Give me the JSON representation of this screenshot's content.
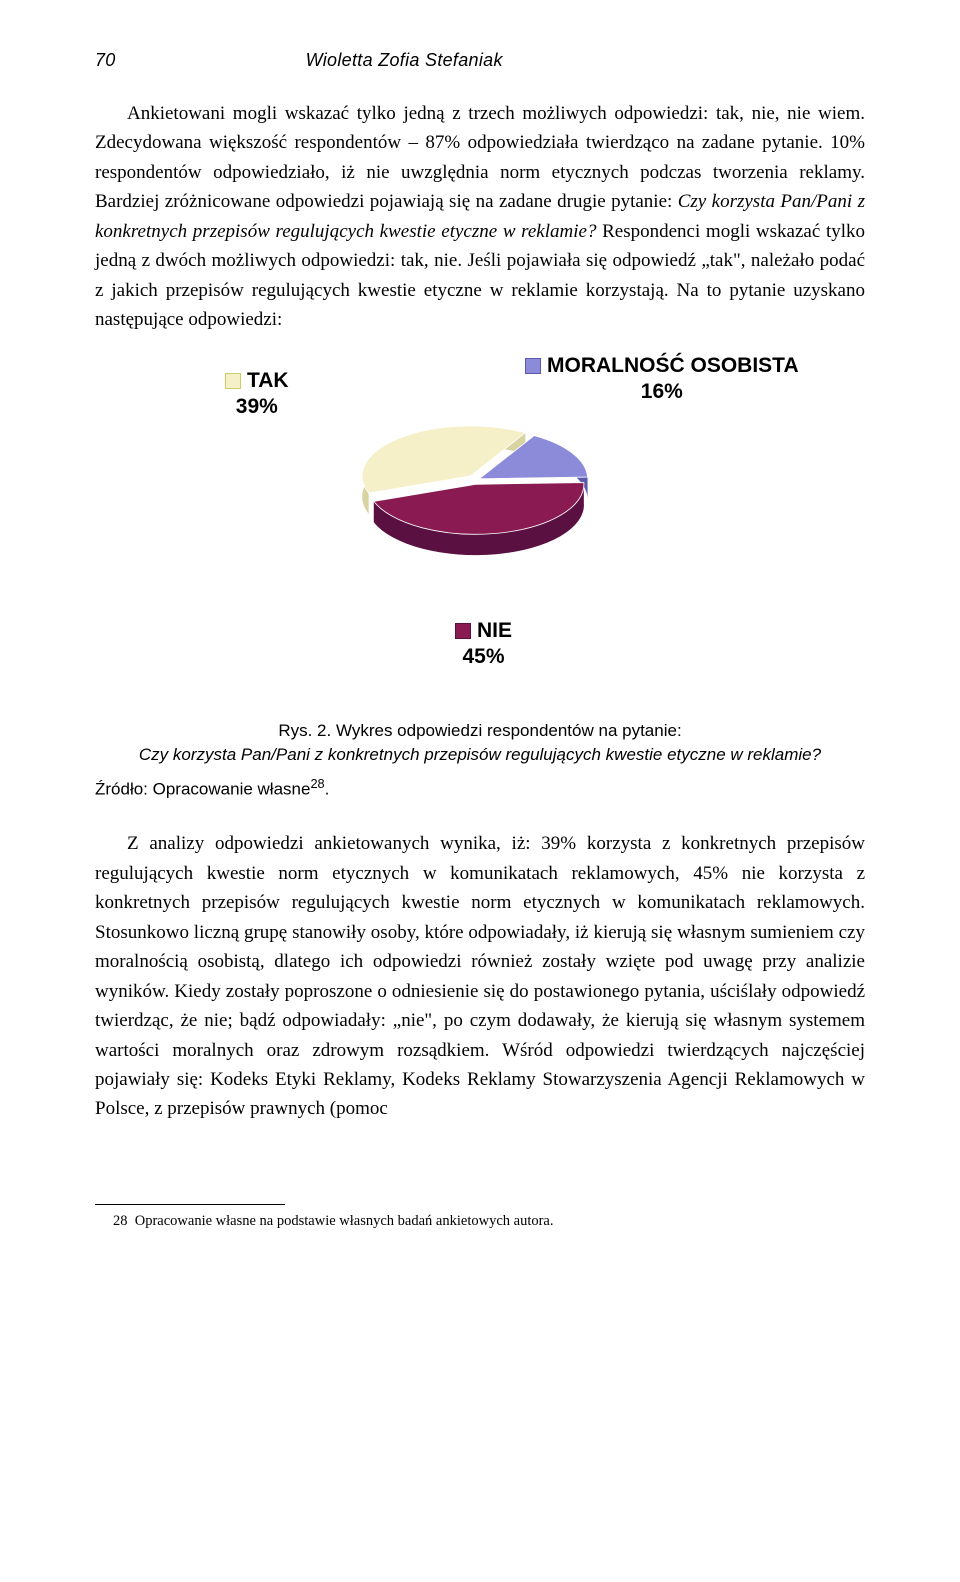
{
  "header": {
    "page_number": "70",
    "author": "Wioletta Zofia Stefaniak"
  },
  "paragraph1_html": "Ankietowani mogli wskazać tylko jedną z trzech możliwych odpowiedzi: tak, nie, nie wiem. Zdecydowana większość respondentów – 87% odpowiedziała twierdząco na zadane pytanie. 10% respondentów odpowiedziało, iż nie uwzględnia norm etycznych podczas tworzenia reklamy. Bardziej zróżnicowane odpowiedzi pojawiają się na zadane drugie pytanie: <em>Czy korzysta Pan/Pani z konkretnych przepisów regulujących kwestie etyczne w reklamie?</em> Respondenci mogli wskazać tylko jedną z dwóch możliwych odpowiedzi: tak, nie. Jeśli pojawiała się odpowiedź „tak\", należało podać z jakich przepisów regulujących kwestie etyczne w reklamie korzystają. Na to pytanie uzyskano następujące odpowiedzi:",
  "chart": {
    "type": "pie-3d",
    "legend": {
      "tak": {
        "label": "TAK",
        "value": "39%",
        "color": "#f5f0c8",
        "marker_border": "#cccc66"
      },
      "moral": {
        "label": "MORALNOŚĆ OSOBISTA",
        "value": "16%",
        "color": "#8b8bd9",
        "marker_border": "#5a5aaa"
      },
      "nie": {
        "label": "NIE",
        "value": "45%",
        "color": "#8a1a52",
        "marker_border": "#5a1040"
      }
    },
    "slices": [
      {
        "name": "TAK",
        "percent": 39,
        "fill": "#f5f0c8",
        "side": "#d8d3a0"
      },
      {
        "name": "MORALNOŚĆ",
        "percent": 16,
        "fill": "#8b8bd9",
        "side": "#5a5aaa"
      },
      {
        "name": "NIE",
        "percent": 45,
        "fill": "#8a1a52",
        "side": "#5a1040"
      }
    ],
    "background": "#ffffff",
    "label_font": "Arial",
    "label_fontsize": 21,
    "label_fontweight": "bold"
  },
  "caption": {
    "line1": "Rys. 2. Wykres odpowiedzi respondentów na pytanie:",
    "line2": "Czy korzysta Pan/Pani z konkretnych przepisów regulujących kwestie etyczne w reklamie?"
  },
  "source": "Źródło: Opracowanie własne",
  "source_sup": "28",
  "source_period": ".",
  "paragraph2": "Z analizy odpowiedzi ankietowanych wynika, iż: 39% korzysta z konkretnych przepisów regulujących kwestie norm etycznych w komunikatach reklamowych, 45% nie korzysta z konkretnych przepisów regulujących kwestie norm etycznych w komunikatach reklamowych. Stosunkowo liczną grupę stanowiły osoby, które odpowiadały, iż kierują się własnym sumieniem czy moralnością osobistą, dlatego ich odpowiedzi również zostały wzięte pod uwagę przy analizie wyników. Kiedy zostały poproszone o odniesienie się do postawionego pytania, uściślały odpowiedź twierdząc, że nie; bądź odpowiadały: „nie\", po czym dodawały, że kierują się własnym systemem wartości moralnych oraz zdrowym rozsądkiem. Wśród odpowiedzi twierdzących najczęściej pojawiały się: Kodeks Etyki Reklamy, Kodeks Reklamy Stowarzyszenia Agencji Reklamowych w Polsce, z przepisów prawnych (pomoc",
  "footnote": {
    "num": "28",
    "text": "Opracowanie własne na podstawie własnych badań ankietowych autora."
  }
}
